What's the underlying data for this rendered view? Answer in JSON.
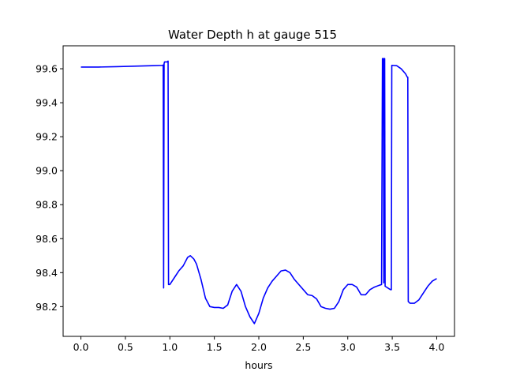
{
  "chart_data": {
    "type": "line",
    "title": "Water Depth h at gauge 515",
    "xlabel": "hours",
    "ylabel": "",
    "xlim": [
      -0.2,
      4.2
    ],
    "ylim": [
      98.025,
      99.735
    ],
    "grid": false,
    "x_ticks": [
      0.0,
      0.5,
      1.0,
      1.5,
      2.0,
      2.5,
      3.0,
      3.5,
      4.0
    ],
    "x_tick_labels": [
      "0.0",
      "0.5",
      "1.0",
      "1.5",
      "2.0",
      "2.5",
      "3.0",
      "3.5",
      "4.0"
    ],
    "y_ticks": [
      98.2,
      98.4,
      98.6,
      98.8,
      99.0,
      99.2,
      99.4,
      99.6
    ],
    "y_tick_labels": [
      "98.2",
      "98.4",
      "98.6",
      "98.8",
      "99.0",
      "99.2",
      "99.4",
      "99.6"
    ],
    "series": [
      {
        "color": "#0000ff",
        "x": [
          0.0,
          0.2,
          0.4,
          0.6,
          0.8,
          0.92,
          0.925,
          0.93,
          0.935,
          0.94,
          0.95,
          0.97,
          0.98,
          0.985,
          1.0,
          1.05,
          1.1,
          1.15,
          1.2,
          1.23,
          1.27,
          1.3,
          1.35,
          1.4,
          1.45,
          1.5,
          1.55,
          1.6,
          1.65,
          1.7,
          1.75,
          1.8,
          1.85,
          1.9,
          1.95,
          2.0,
          2.05,
          2.1,
          2.15,
          2.2,
          2.25,
          2.3,
          2.35,
          2.4,
          2.45,
          2.5,
          2.55,
          2.6,
          2.65,
          2.7,
          2.75,
          2.8,
          2.85,
          2.9,
          2.95,
          3.0,
          3.05,
          3.1,
          3.15,
          3.2,
          3.25,
          3.3,
          3.35,
          3.38,
          3.39,
          3.4,
          3.405,
          3.41,
          3.415,
          3.42,
          3.45,
          3.48,
          3.49,
          3.495,
          3.5,
          3.55,
          3.6,
          3.65,
          3.67,
          3.675,
          3.68,
          3.7,
          3.75,
          3.8,
          3.85,
          3.9,
          3.95,
          4.0
        ],
        "y": [
          99.61,
          99.61,
          99.612,
          99.615,
          99.618,
          99.62,
          99.622,
          98.31,
          99.63,
          99.64,
          99.64,
          99.64,
          99.645,
          98.33,
          98.33,
          98.37,
          98.41,
          98.44,
          98.49,
          98.5,
          98.48,
          98.45,
          98.36,
          98.25,
          98.2,
          98.195,
          98.195,
          98.19,
          98.21,
          98.29,
          98.33,
          98.29,
          98.2,
          98.14,
          98.1,
          98.16,
          98.25,
          98.31,
          98.35,
          98.38,
          98.41,
          98.415,
          98.4,
          98.36,
          98.33,
          98.3,
          98.27,
          98.265,
          98.245,
          98.2,
          98.19,
          98.185,
          98.19,
          98.23,
          98.3,
          98.33,
          98.33,
          98.315,
          98.27,
          98.27,
          98.3,
          98.315,
          98.325,
          98.33,
          99.66,
          99.66,
          98.34,
          99.66,
          99.66,
          98.32,
          98.31,
          98.3,
          98.3,
          99.62,
          99.62,
          99.618,
          99.6,
          99.57,
          99.55,
          99.55,
          98.23,
          98.22,
          98.22,
          98.24,
          98.28,
          98.32,
          98.35,
          98.365
        ]
      }
    ]
  }
}
